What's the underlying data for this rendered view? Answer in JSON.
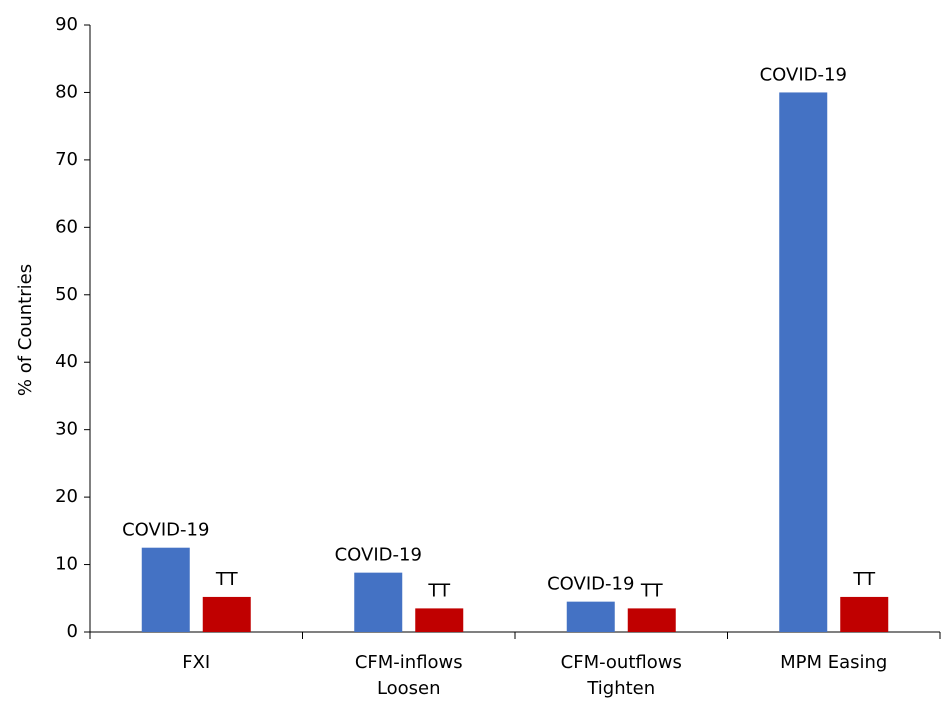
{
  "chart_data": {
    "type": "bar",
    "y_label": "% of Countries",
    "categories": [
      "FXI",
      "CFM-inflows\nLoosen",
      "CFM-outflows\nTighten",
      "MPM Easing"
    ],
    "series": [
      {
        "name": "COVID-19",
        "color": "#4472c4",
        "values": [
          12.5,
          8.8,
          4.5,
          80
        ]
      },
      {
        "name": "TT",
        "color": "#c00000",
        "values": [
          5.2,
          3.5,
          3.5,
          5.2
        ]
      }
    ],
    "ylim": [
      0,
      90
    ],
    "yticks": [
      0,
      10,
      20,
      30,
      40,
      50,
      60,
      70,
      80,
      90
    ]
  }
}
